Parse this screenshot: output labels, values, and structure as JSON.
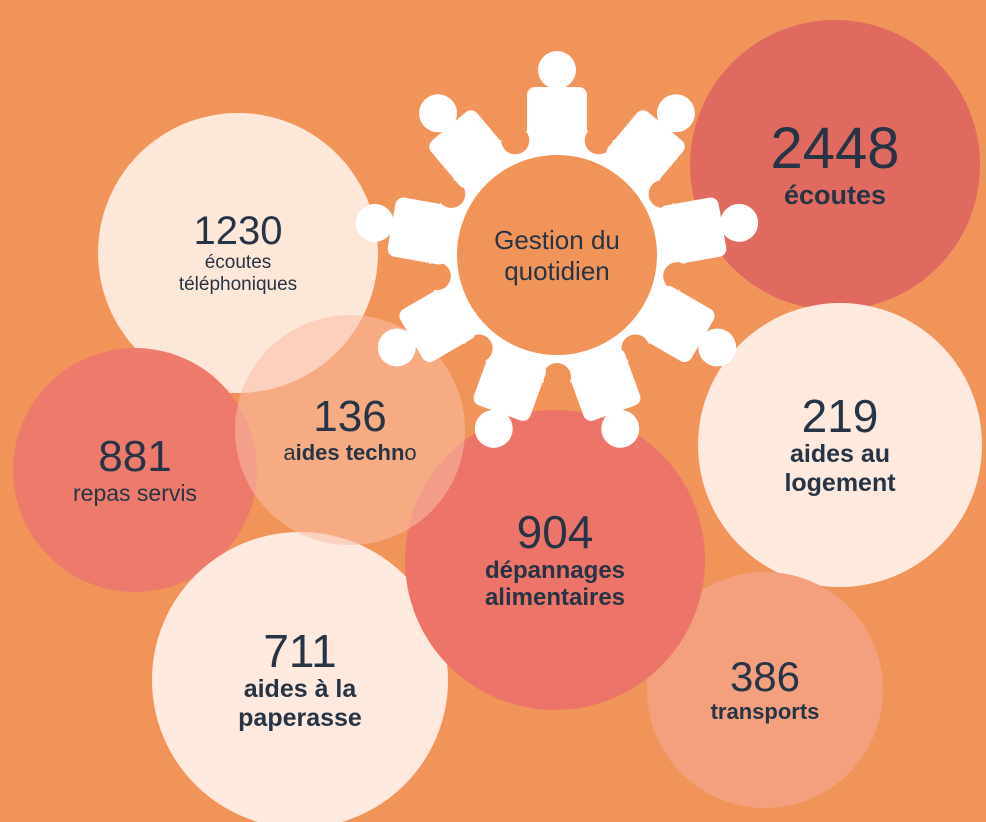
{
  "center_label": "Gestion du quotidien",
  "bubbles": [
    {
      "number": 2448,
      "label": [
        {
          "text": "écoutes",
          "bold": true
        }
      ]
    },
    {
      "number": 1230,
      "label": [
        {
          "text": "écoutes téléphoniques",
          "bold": false
        }
      ]
    },
    {
      "number": 219,
      "label": [
        {
          "text": "aides au logement",
          "bold": true
        }
      ]
    },
    {
      "number": 881,
      "label": [
        {
          "text": "repas servis",
          "bold": false
        }
      ]
    },
    {
      "number": 136,
      "label": [
        {
          "text": "a",
          "bold": false
        },
        {
          "text": "ides techn",
          "bold": true
        },
        {
          "text": "o",
          "bold": false
        }
      ]
    },
    {
      "number": 904,
      "label": [
        {
          "text": "dépannages alimentaires",
          "bold": true
        }
      ]
    },
    {
      "number": 711,
      "label": [
        {
          "text": "aides à la paperasse",
          "bold": true
        }
      ]
    },
    {
      "number": 386,
      "label": [
        {
          "text": "transports",
          "bold": true
        }
      ]
    }
  ]
}
